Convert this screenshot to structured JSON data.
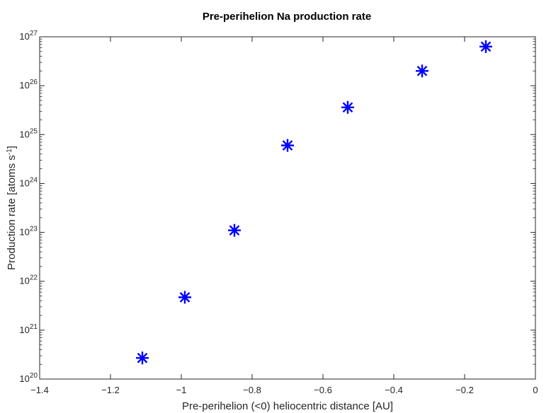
{
  "chart_data": {
    "type": "scatter",
    "title": "Pre-perihelion Na production rate",
    "xlabel": "Pre-perihelion (<0) heliocentric distance [AU]",
    "ylabel": "Production rate [atoms s",
    "ylabel_exponent": "-1",
    "ylabel_suffix": "]",
    "xlim": [
      -1.4,
      0
    ],
    "ylim": [
      1e+20,
      1e+27
    ],
    "yscale": "log",
    "grid": false,
    "marker": "asterisk",
    "marker_color": "#0000ff",
    "x_ticks": [
      {
        "value": -1.4,
        "label": "−1.4"
      },
      {
        "value": -1.2,
        "label": "−1.2"
      },
      {
        "value": -1.0,
        "label": "−1"
      },
      {
        "value": -0.8,
        "label": "−0.8"
      },
      {
        "value": -0.6,
        "label": "−0.6"
      },
      {
        "value": -0.4,
        "label": "−0.4"
      },
      {
        "value": -0.2,
        "label": "−0.2"
      },
      {
        "value": 0,
        "label": "0"
      }
    ],
    "y_ticks": [
      {
        "exp": 20,
        "base": "10",
        "power": "20"
      },
      {
        "exp": 21,
        "base": "10",
        "power": "21"
      },
      {
        "exp": 22,
        "base": "10",
        "power": "22"
      },
      {
        "exp": 23,
        "base": "10",
        "power": "23"
      },
      {
        "exp": 24,
        "base": "10",
        "power": "24"
      },
      {
        "exp": 25,
        "base": "10",
        "power": "25"
      },
      {
        "exp": 26,
        "base": "10",
        "power": "26"
      },
      {
        "exp": 27,
        "base": "10",
        "power": "27"
      }
    ],
    "points": [
      {
        "x": -1.11,
        "y": 2.7e+20
      },
      {
        "x": -0.99,
        "y": 4.7e+21
      },
      {
        "x": -0.85,
        "y": 1.1e+23
      },
      {
        "x": -0.7,
        "y": 6e+24
      },
      {
        "x": -0.53,
        "y": 3.6e+25
      },
      {
        "x": -0.32,
        "y": 2e+26
      },
      {
        "x": -0.14,
        "y": 6.3e+26
      }
    ]
  }
}
